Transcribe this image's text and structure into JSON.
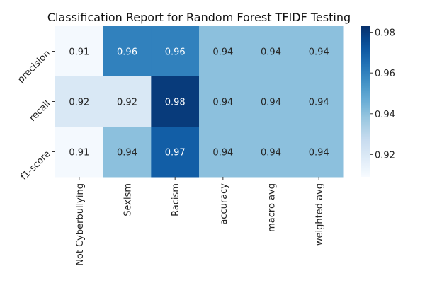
{
  "chart_data": {
    "type": "heatmap",
    "title": "Classification Report for Random Forest TFIDF Testing",
    "xlabel": "",
    "ylabel": "",
    "columns": [
      "Not Cyberbullying",
      "Sexism",
      "Racism",
      "accuracy",
      "macro avg",
      "weighted avg"
    ],
    "rows": [
      "precision",
      "recall",
      "f1-score"
    ],
    "values": [
      [
        0.91,
        0.96,
        0.96,
        0.94,
        0.94,
        0.94
      ],
      [
        0.92,
        0.92,
        0.98,
        0.94,
        0.94,
        0.94
      ],
      [
        0.91,
        0.94,
        0.97,
        0.94,
        0.94,
        0.94
      ]
    ],
    "cell_labels": [
      [
        "0.91",
        "0.96",
        "0.96",
        "0.94",
        "0.94",
        "0.94"
      ],
      [
        "0.92",
        "0.92",
        "0.98",
        "0.94",
        "0.94",
        "0.94"
      ],
      [
        "0.91",
        "0.94",
        "0.97",
        "0.94",
        "0.94",
        "0.94"
      ]
    ],
    "colormap": "Blues",
    "colorbar": {
      "range": [
        0.909,
        0.983
      ],
      "ticks": [
        0.92,
        0.94,
        0.96,
        0.98
      ],
      "tick_labels": [
        "0.92",
        "0.94",
        "0.96",
        "0.98"
      ]
    },
    "grid": false,
    "legend": "colorbar-right"
  }
}
